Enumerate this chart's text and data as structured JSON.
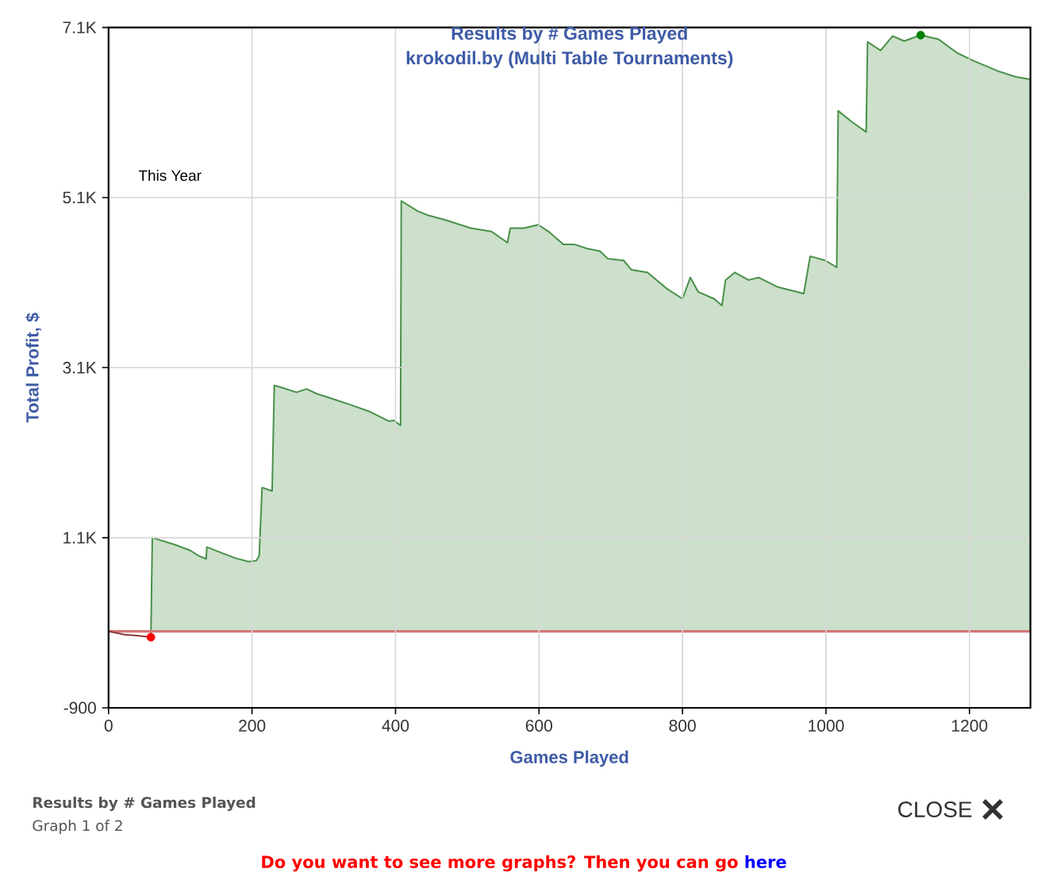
{
  "chart_data": {
    "type": "area",
    "title": "Results by # Games Played",
    "subtitle": "krokodil.by (Multi Table Tournaments)",
    "xlabel": "Games Played",
    "ylabel": "Total Profit, $",
    "annotations": [
      "This Year",
      "Results by # Games Played",
      "Graph 1 of 2",
      "CLOSE",
      "Do you want to see more graphs? Then you can go",
      "here"
    ],
    "xlim": [
      0,
      1285
    ],
    "xticks": [
      0,
      200,
      400,
      600,
      800,
      1000,
      1200
    ],
    "ylim": [
      -900,
      7100
    ],
    "yticks": [
      -900,
      {
        "value": 1100,
        "label": "1.1K"
      },
      {
        "value": 3100,
        "label": "3.1K"
      },
      {
        "value": 5100,
        "label": "5.1K"
      },
      {
        "value": 7100,
        "label": "7.1K"
      }
    ],
    "grid": true,
    "ref_lines": [
      {
        "axis": "y",
        "value": 0,
        "color": "#d47777"
      }
    ],
    "series": [
      {
        "type": "line",
        "color": "#8b3a3a",
        "x": [
          0,
          22,
          40,
          59
        ],
        "values": [
          0,
          -40,
          -50,
          -70
        ]
      },
      {
        "color": "#cce0cc",
        "x": [
          59,
          61,
          92,
          114,
          125,
          136,
          137,
          158,
          177,
          195,
          206,
          210,
          214,
          228,
          231,
          240,
          262,
          276,
          291,
          306,
          335,
          365,
          391,
          398,
          407,
          408,
          431,
          446,
          468,
          505,
          534,
          556,
          560,
          579,
          599,
          615,
          634,
          649,
          667,
          685,
          696,
          718,
          729,
          751,
          778,
          800,
          811,
          822,
          844,
          855,
          860,
          873,
          892,
          906,
          932,
          969,
          978,
          999,
          1015,
          1017,
          1036,
          1056,
          1058,
          1076,
          1093,
          1109,
          1132,
          1157,
          1183,
          1205,
          1242,
          1264,
          1285
        ],
        "values": [
          -70,
          1100,
          1020,
          950,
          890,
          850,
          990,
          920,
          860,
          820,
          830,
          890,
          1690,
          1650,
          2890,
          2870,
          2810,
          2850,
          2790,
          2750,
          2670,
          2580,
          2470,
          2480,
          2420,
          5060,
          4940,
          4890,
          4840,
          4740,
          4700,
          4570,
          4740,
          4740,
          4780,
          4690,
          4550,
          4550,
          4500,
          4470,
          4380,
          4360,
          4250,
          4220,
          4030,
          3910,
          4160,
          3990,
          3910,
          3830,
          4130,
          4220,
          4130,
          4160,
          4050,
          3970,
          4410,
          4360,
          4280,
          6120,
          5990,
          5870,
          6930,
          6830,
          7000,
          6940,
          7010,
          6960,
          6800,
          6710,
          6580,
          6520,
          6490
        ]
      },
      {
        "type": "scatter",
        "marker": "circle",
        "colors": [
          "#ff0000",
          "#008000"
        ],
        "x": [
          59,
          1132
        ],
        "values": [
          -70,
          7010
        ]
      }
    ]
  }
}
